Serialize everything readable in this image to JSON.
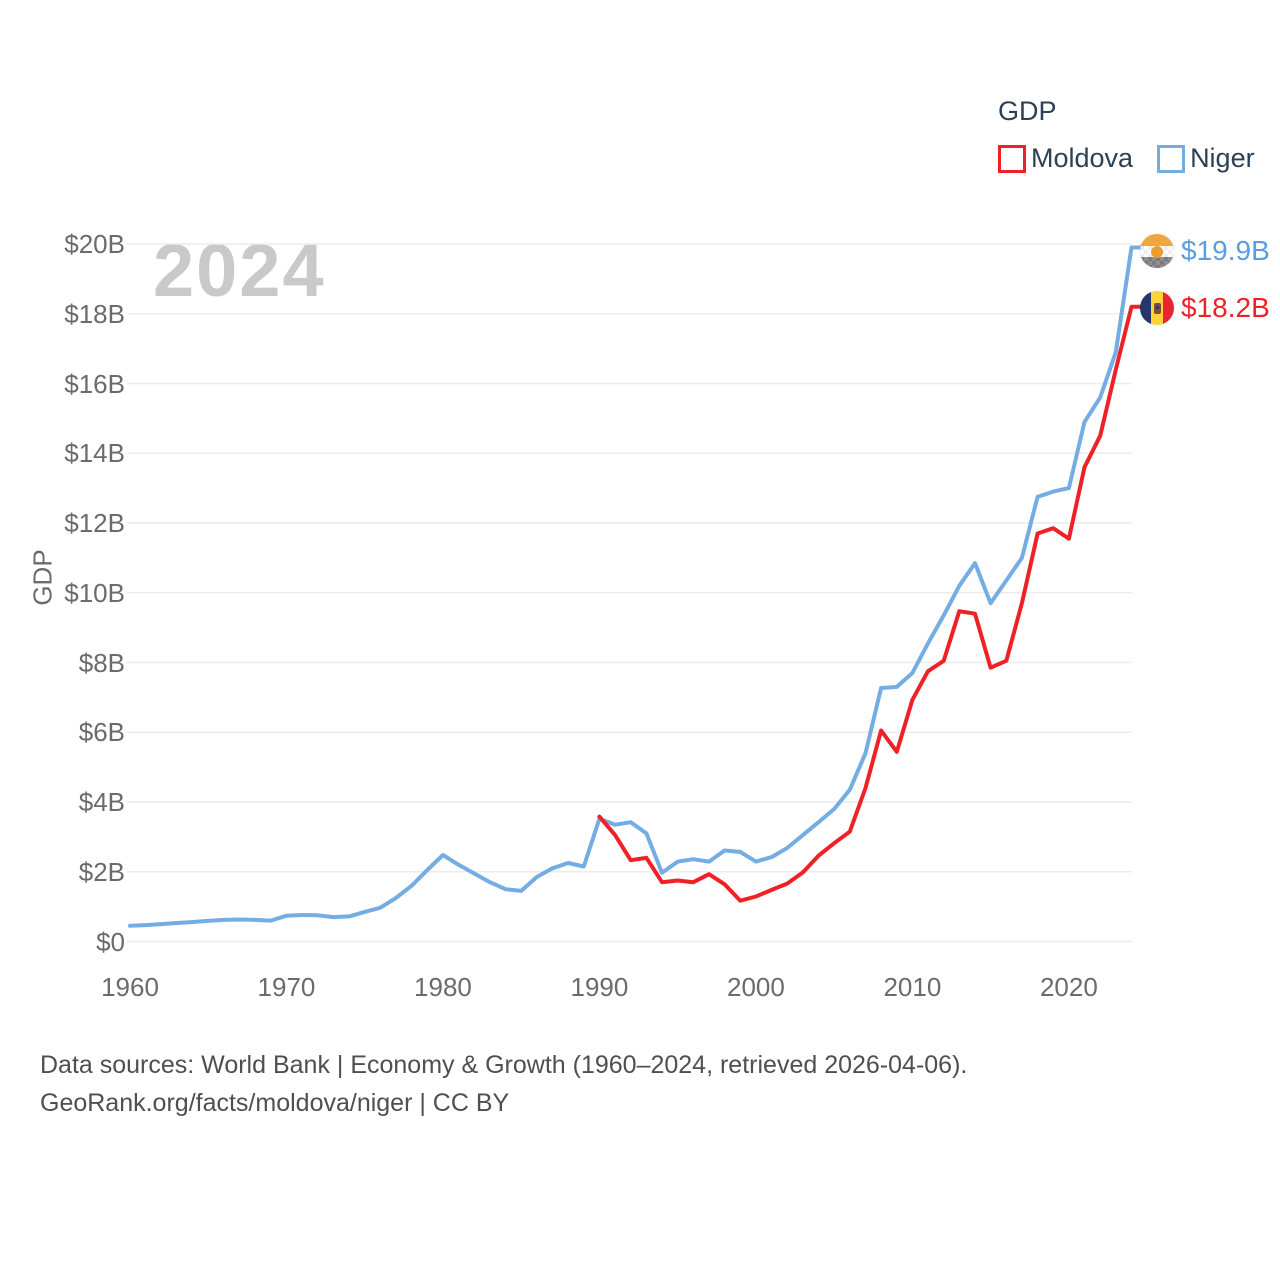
{
  "watermark": "2024",
  "legend": {
    "title": "GDP",
    "items": [
      {
        "label": "Moldova",
        "color": "#ee2226"
      },
      {
        "label": "Niger",
        "color": "#74ace4"
      }
    ]
  },
  "y_axis": {
    "label": "GDP",
    "ticks": [
      "$0",
      "$2B",
      "$4B",
      "$6B",
      "$8B",
      "$10B",
      "$12B",
      "$14B",
      "$16B",
      "$18B",
      "$20B"
    ]
  },
  "x_axis": {
    "ticks": [
      "1960",
      "1970",
      "1980",
      "1990",
      "2000",
      "2010",
      "2020"
    ]
  },
  "end_labels": [
    {
      "series": "Niger",
      "value": "$19.9B",
      "color": "#5b9de2",
      "flag": "niger-flag"
    },
    {
      "series": "Moldova",
      "value": "$18.2B",
      "color": "#ee2226",
      "flag": "moldova-flag"
    }
  ],
  "footer": {
    "line1": "Data sources: World Bank | Economy & Growth (1960–2024, retrieved 2026-04-06).",
    "line2": "GeoRank.org/facts/moldova/niger | CC BY"
  },
  "chart_data": {
    "type": "line",
    "title": "GDP",
    "xlabel": "",
    "ylabel": "GDP",
    "ylim": [
      0,
      20
    ],
    "xlim": [
      1960,
      2024
    ],
    "grid": true,
    "legend_position": "top-right",
    "unit": "billions USD",
    "x": [
      1960,
      1961,
      1962,
      1963,
      1964,
      1965,
      1966,
      1967,
      1968,
      1969,
      1970,
      1971,
      1972,
      1973,
      1974,
      1975,
      1976,
      1977,
      1978,
      1979,
      1980,
      1981,
      1982,
      1983,
      1984,
      1985,
      1986,
      1987,
      1988,
      1989,
      1990,
      1991,
      1992,
      1993,
      1994,
      1995,
      1996,
      1997,
      1998,
      1999,
      2000,
      2001,
      2002,
      2003,
      2004,
      2005,
      2006,
      2007,
      2008,
      2009,
      2010,
      2011,
      2012,
      2013,
      2014,
      2015,
      2016,
      2017,
      2018,
      2019,
      2020,
      2021,
      2022,
      2023,
      2024
    ],
    "series": [
      {
        "name": "Niger",
        "color": "#74ace4",
        "final_label": "$19.9B",
        "values": [
          0.45,
          0.47,
          0.5,
          0.53,
          0.56,
          0.59,
          0.62,
          0.63,
          0.62,
          0.6,
          0.74,
          0.76,
          0.75,
          0.7,
          0.72,
          0.85,
          0.97,
          1.25,
          1.6,
          2.05,
          2.48,
          2.2,
          1.95,
          1.7,
          1.5,
          1.45,
          1.85,
          2.1,
          2.25,
          2.15,
          3.52,
          3.35,
          3.42,
          3.1,
          1.97,
          2.29,
          2.36,
          2.29,
          2.61,
          2.57,
          2.29,
          2.42,
          2.68,
          3.05,
          3.42,
          3.8,
          4.35,
          5.4,
          7.27,
          7.3,
          7.7,
          8.55,
          9.35,
          10.2,
          10.85,
          9.7,
          10.35,
          11.0,
          12.75,
          12.9,
          13.0,
          14.9,
          15.6,
          16.9,
          19.9
        ]
      },
      {
        "name": "Moldova",
        "color": "#ee2226",
        "final_label": "$18.2B",
        "values": [
          null,
          null,
          null,
          null,
          null,
          null,
          null,
          null,
          null,
          null,
          null,
          null,
          null,
          null,
          null,
          null,
          null,
          null,
          null,
          null,
          null,
          null,
          null,
          null,
          null,
          null,
          null,
          null,
          null,
          null,
          3.58,
          3.05,
          2.33,
          2.4,
          1.7,
          1.75,
          1.7,
          1.93,
          1.64,
          1.17,
          1.29,
          1.48,
          1.66,
          1.98,
          2.46,
          2.82,
          3.15,
          4.4,
          6.05,
          5.44,
          6.93,
          7.75,
          8.05,
          9.47,
          9.4,
          7.85,
          8.05,
          9.7,
          11.7,
          11.85,
          11.55,
          13.6,
          14.5,
          16.4,
          18.2
        ]
      }
    ]
  }
}
